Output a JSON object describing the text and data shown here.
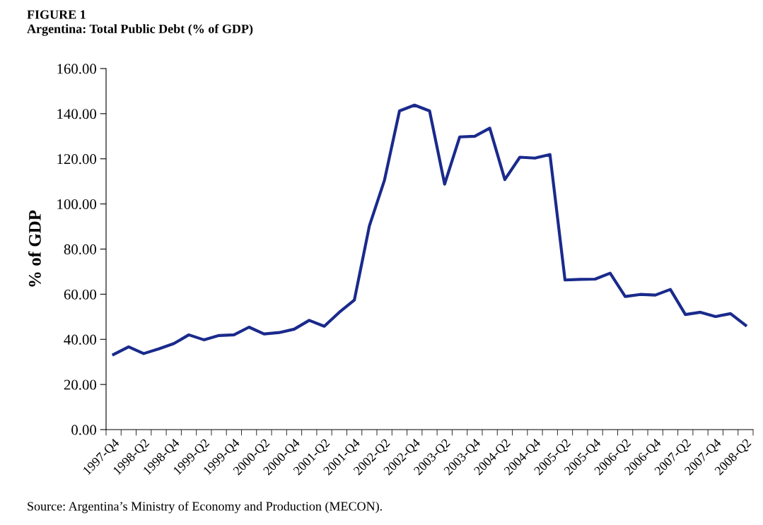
{
  "chart_data": {
    "type": "line",
    "title": "FIGURE 1",
    "subtitle": "Argentina: Total Public Debt (% of GDP)",
    "ylabel": "% of GDP",
    "annotations": [
      "Source: Argentina’s Ministry of Economy and Production (MECON)."
    ],
    "categories": [
      "1997-Q4",
      null,
      "1998-Q2",
      null,
      "1998-Q4",
      null,
      "1999-Q2",
      null,
      "1999-Q4",
      null,
      "2000-Q2",
      null,
      "2000-Q4",
      null,
      "2001-Q2",
      null,
      "2001-Q4",
      null,
      "2002-Q2",
      null,
      "2002-Q4",
      null,
      "2003-Q2",
      null,
      "2003-Q4",
      null,
      "2004-Q2",
      null,
      "2004-Q4",
      null,
      "2005-Q2",
      null,
      "2005-Q4",
      null,
      "2006-Q2",
      null,
      "2006-Q4",
      null,
      "2007-Q2",
      null,
      "2007-Q4",
      null,
      "2008-Q2"
    ],
    "series": [
      {
        "color": "#1a2a8c",
        "values": [
          33.3,
          36.7,
          33.7,
          35.8,
          38.1,
          42.0,
          39.8,
          41.7,
          42.0,
          45.4,
          42.4,
          43.0,
          44.5,
          48.4,
          45.8,
          52.0,
          57.4,
          90.3,
          110.5,
          141.2,
          143.8,
          141.2,
          108.8,
          129.7,
          130.0,
          133.6,
          110.8,
          120.7,
          120.3,
          121.9,
          66.3,
          66.6,
          66.7,
          69.3,
          59.0,
          59.9,
          59.6,
          62.1,
          51.0,
          52.0,
          50.1,
          51.4,
          46.2
        ]
      }
    ],
    "ylim": [
      0,
      160
    ],
    "yticks": [
      {
        "value": 0,
        "label": "0.00"
      },
      {
        "value": 20,
        "label": "20.00"
      },
      {
        "value": 40,
        "label": "40.00"
      },
      {
        "value": 60,
        "label": "60.00"
      },
      {
        "value": 80,
        "label": "80.00"
      },
      {
        "value": 100,
        "label": "100.00"
      },
      {
        "value": 120,
        "label": "120.00"
      },
      {
        "value": 140,
        "label": "140.00"
      },
      {
        "value": 160,
        "label": "160.00"
      }
    ],
    "grid": false,
    "marker": "none",
    "line_style": "solid"
  }
}
